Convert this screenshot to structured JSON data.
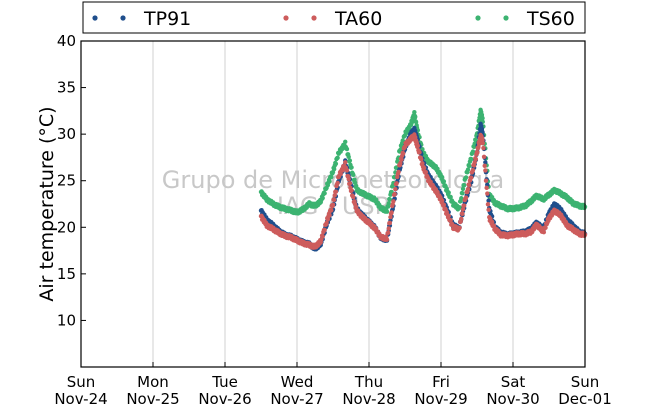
{
  "chart_data": {
    "type": "scatter",
    "title": "",
    "ylabel": "Air temperature (°C)",
    "xlabel": "",
    "watermark": [
      "Grupo de Micrometeorologia",
      "IAG / USP"
    ],
    "ylim": [
      5,
      40
    ],
    "yticks": [
      10,
      15,
      20,
      25,
      30,
      35,
      40
    ],
    "xlim": [
      0,
      7
    ],
    "xticks": [
      {
        "x": 0,
        "line1": "Sun",
        "line2": "Nov-24"
      },
      {
        "x": 1,
        "line1": "Mon",
        "line2": "Nov-25"
      },
      {
        "x": 2,
        "line1": "Tue",
        "line2": "Nov-26"
      },
      {
        "x": 3,
        "line1": "Wed",
        "line2": "Nov-27"
      },
      {
        "x": 4,
        "line1": "Thu",
        "line2": "Nov-28"
      },
      {
        "x": 5,
        "line1": "Fri",
        "line2": "Nov-29"
      },
      {
        "x": 6,
        "line1": "Sat",
        "line2": "Nov-30"
      },
      {
        "x": 7,
        "line1": "Sun",
        "line2": "Dec-01"
      }
    ],
    "grid": "vertical",
    "legend_position": "top",
    "series": [
      {
        "name": "TP91",
        "color": "#1f4e8c",
        "points": [
          [
            2.5,
            21.8
          ],
          [
            2.58,
            20.8
          ],
          [
            2.67,
            20.2
          ],
          [
            2.75,
            19.6
          ],
          [
            2.83,
            19.2
          ],
          [
            2.92,
            19.0
          ],
          [
            3.0,
            18.7
          ],
          [
            3.08,
            18.4
          ],
          [
            3.17,
            18.2
          ],
          [
            3.25,
            17.7
          ],
          [
            3.33,
            18.2
          ],
          [
            3.42,
            20.5
          ],
          [
            3.5,
            22.0
          ],
          [
            3.58,
            25.0
          ],
          [
            3.67,
            27.0
          ],
          [
            3.75,
            24.5
          ],
          [
            3.83,
            22.0
          ],
          [
            3.92,
            21.2
          ],
          [
            4.0,
            20.6
          ],
          [
            4.08,
            20.0
          ],
          [
            4.17,
            18.8
          ],
          [
            4.25,
            18.7
          ],
          [
            4.33,
            22.0
          ],
          [
            4.42,
            26.0
          ],
          [
            4.5,
            28.5
          ],
          [
            4.58,
            30.0
          ],
          [
            4.63,
            30.5
          ],
          [
            4.67,
            29.5
          ],
          [
            4.75,
            27.0
          ],
          [
            4.83,
            25.5
          ],
          [
            4.92,
            24.5
          ],
          [
            5.0,
            23.5
          ],
          [
            5.08,
            22.0
          ],
          [
            5.17,
            20.2
          ],
          [
            5.25,
            19.9
          ],
          [
            5.33,
            22.5
          ],
          [
            5.42,
            25.0
          ],
          [
            5.5,
            28.0
          ],
          [
            5.55,
            31.0
          ],
          [
            5.58,
            30.0
          ],
          [
            5.67,
            22.0
          ],
          [
            5.75,
            20.0
          ],
          [
            5.83,
            19.4
          ],
          [
            5.92,
            19.2
          ],
          [
            6.0,
            19.3
          ],
          [
            6.08,
            19.4
          ],
          [
            6.17,
            19.5
          ],
          [
            6.25,
            19.8
          ],
          [
            6.33,
            20.5
          ],
          [
            6.42,
            19.8
          ],
          [
            6.5,
            21.5
          ],
          [
            6.58,
            22.5
          ],
          [
            6.67,
            21.8
          ],
          [
            6.75,
            20.8
          ],
          [
            6.83,
            20.2
          ],
          [
            6.92,
            19.5
          ],
          [
            7.0,
            19.3
          ]
        ]
      },
      {
        "name": "TA60",
        "color": "#cd5c5c",
        "points": [
          [
            2.5,
            21.2
          ],
          [
            2.58,
            20.2
          ],
          [
            2.67,
            19.8
          ],
          [
            2.75,
            19.4
          ],
          [
            2.83,
            19.1
          ],
          [
            2.92,
            18.9
          ],
          [
            3.0,
            18.6
          ],
          [
            3.08,
            18.3
          ],
          [
            3.17,
            18.1
          ],
          [
            3.25,
            17.9
          ],
          [
            3.33,
            18.5
          ],
          [
            3.42,
            20.8
          ],
          [
            3.5,
            22.5
          ],
          [
            3.58,
            25.5
          ],
          [
            3.67,
            26.8
          ],
          [
            3.75,
            24.0
          ],
          [
            3.83,
            21.8
          ],
          [
            3.92,
            21.0
          ],
          [
            4.0,
            20.5
          ],
          [
            4.08,
            19.9
          ],
          [
            4.17,
            18.9
          ],
          [
            4.25,
            18.8
          ],
          [
            4.33,
            22.5
          ],
          [
            4.42,
            26.5
          ],
          [
            4.5,
            28.8
          ],
          [
            4.58,
            29.5
          ],
          [
            4.63,
            29.8
          ],
          [
            4.67,
            28.8
          ],
          [
            4.75,
            26.5
          ],
          [
            4.83,
            25.0
          ],
          [
            4.92,
            24.0
          ],
          [
            5.0,
            23.0
          ],
          [
            5.08,
            21.5
          ],
          [
            5.17,
            20.0
          ],
          [
            5.25,
            19.8
          ],
          [
            5.33,
            22.8
          ],
          [
            5.42,
            25.5
          ],
          [
            5.5,
            28.0
          ],
          [
            5.55,
            29.8
          ],
          [
            5.58,
            29.2
          ],
          [
            5.67,
            21.0
          ],
          [
            5.75,
            19.8
          ],
          [
            5.83,
            19.2
          ],
          [
            5.92,
            19.1
          ],
          [
            6.0,
            19.2
          ],
          [
            6.08,
            19.3
          ],
          [
            6.17,
            19.3
          ],
          [
            6.25,
            19.5
          ],
          [
            6.33,
            20.3
          ],
          [
            6.42,
            19.5
          ],
          [
            6.5,
            21.0
          ],
          [
            6.58,
            21.8
          ],
          [
            6.67,
            21.2
          ],
          [
            6.75,
            20.2
          ],
          [
            6.83,
            19.8
          ],
          [
            6.92,
            19.3
          ],
          [
            7.0,
            19.2
          ]
        ]
      },
      {
        "name": "TS60",
        "color": "#3cb371",
        "points": [
          [
            2.5,
            23.8
          ],
          [
            2.58,
            23.0
          ],
          [
            2.67,
            22.5
          ],
          [
            2.75,
            22.2
          ],
          [
            2.83,
            22.0
          ],
          [
            2.92,
            21.8
          ],
          [
            3.0,
            21.6
          ],
          [
            3.08,
            21.9
          ],
          [
            3.17,
            22.5
          ],
          [
            3.25,
            22.3
          ],
          [
            3.33,
            22.8
          ],
          [
            3.42,
            24.5
          ],
          [
            3.5,
            26.0
          ],
          [
            3.58,
            28.0
          ],
          [
            3.67,
            29.0
          ],
          [
            3.75,
            26.5
          ],
          [
            3.83,
            24.0
          ],
          [
            3.92,
            23.6
          ],
          [
            4.0,
            23.3
          ],
          [
            4.08,
            23.0
          ],
          [
            4.17,
            22.0
          ],
          [
            4.25,
            21.8
          ],
          [
            4.33,
            24.5
          ],
          [
            4.42,
            28.0
          ],
          [
            4.5,
            30.0
          ],
          [
            4.58,
            31.0
          ],
          [
            4.63,
            32.2
          ],
          [
            4.67,
            30.5
          ],
          [
            4.75,
            28.0
          ],
          [
            4.83,
            27.0
          ],
          [
            4.92,
            26.5
          ],
          [
            5.0,
            25.5
          ],
          [
            5.08,
            24.0
          ],
          [
            5.17,
            22.5
          ],
          [
            5.25,
            22.0
          ],
          [
            5.33,
            25.0
          ],
          [
            5.42,
            27.5
          ],
          [
            5.5,
            30.0
          ],
          [
            5.55,
            32.5
          ],
          [
            5.58,
            31.5
          ],
          [
            5.67,
            23.5
          ],
          [
            5.75,
            22.6
          ],
          [
            5.83,
            22.3
          ],
          [
            5.92,
            22.0
          ],
          [
            6.0,
            22.0
          ],
          [
            6.08,
            22.1
          ],
          [
            6.17,
            22.3
          ],
          [
            6.25,
            22.8
          ],
          [
            6.33,
            23.4
          ],
          [
            6.42,
            23.0
          ],
          [
            6.5,
            23.5
          ],
          [
            6.58,
            24.0
          ],
          [
            6.67,
            23.6
          ],
          [
            6.75,
            23.2
          ],
          [
            6.83,
            22.6
          ],
          [
            6.92,
            22.3
          ],
          [
            7.0,
            22.2
          ]
        ]
      }
    ]
  }
}
